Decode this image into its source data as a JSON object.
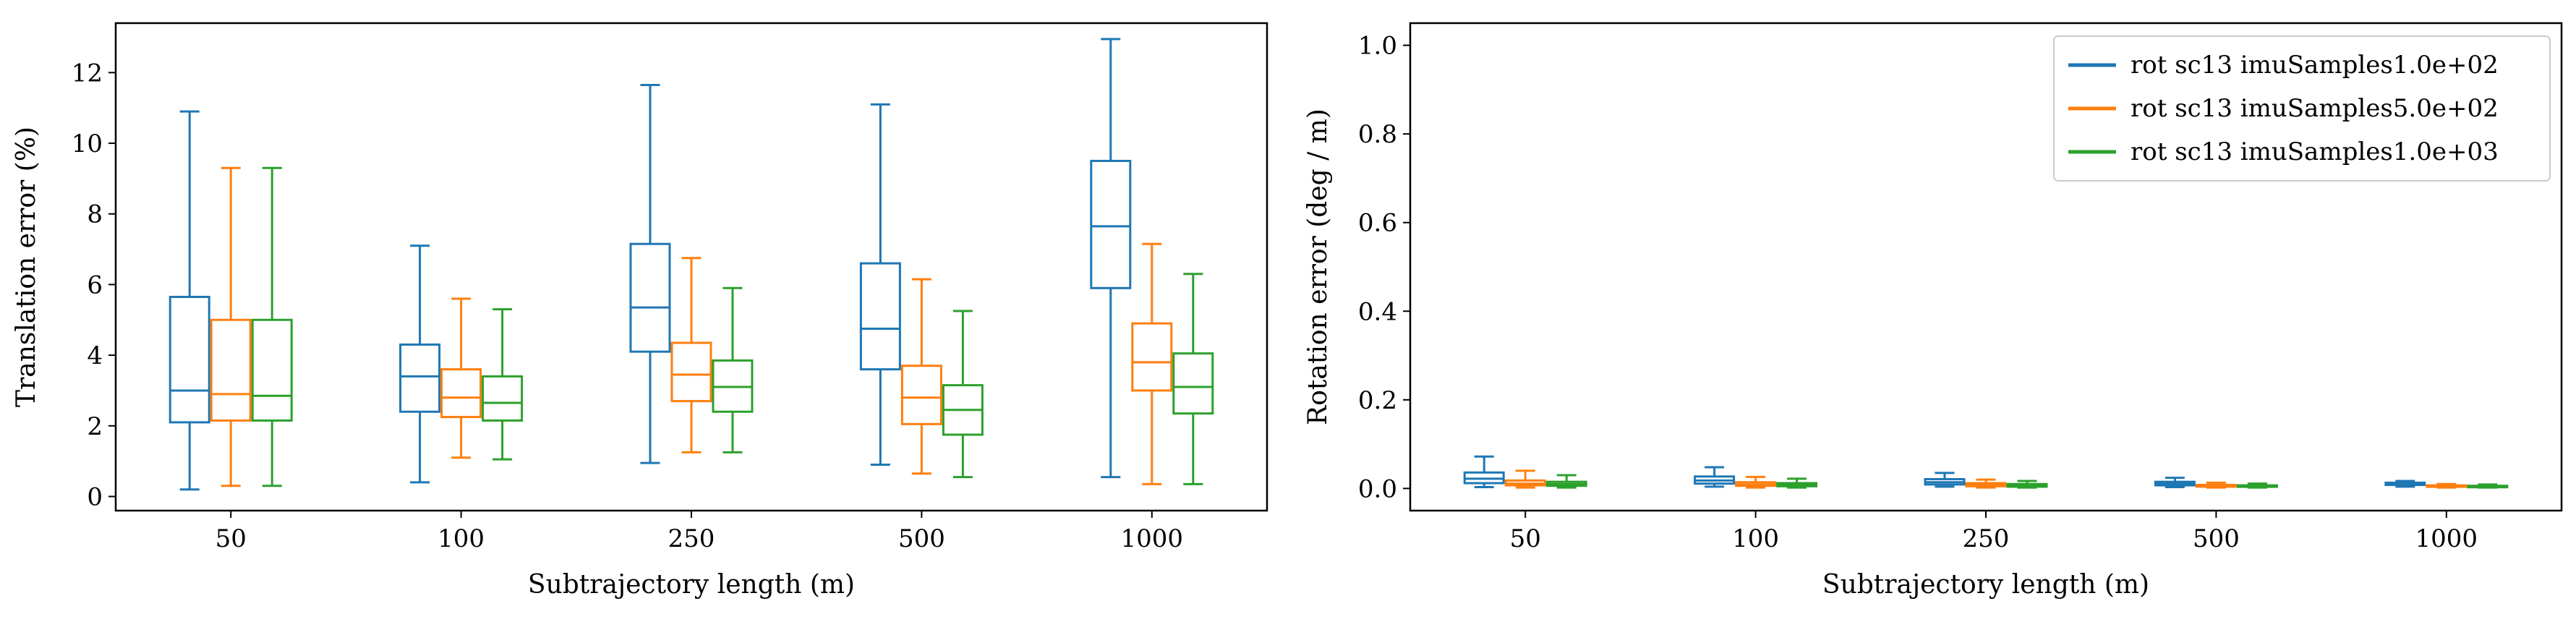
{
  "chart_data": [
    {
      "type": "boxplot",
      "categories": [
        "50",
        "100",
        "250",
        "500",
        "1000"
      ],
      "xlabel": "Subtrajectory length (m)",
      "ylabel": "Translation error (%)",
      "ylim": [
        -0.4,
        13.4
      ],
      "yticks": [
        0,
        2,
        4,
        6,
        8,
        10,
        12
      ],
      "grid": false,
      "legend": false,
      "series": [
        {
          "color": "#1f77b4",
          "boxes": [
            {
              "whislo": 0.2,
              "q1": 2.1,
              "med": 3.0,
              "q3": 5.65,
              "whishi": 10.9
            },
            {
              "whislo": 0.4,
              "q1": 2.4,
              "med": 3.4,
              "q3": 4.3,
              "whishi": 7.1
            },
            {
              "whislo": 0.95,
              "q1": 4.1,
              "med": 5.35,
              "q3": 7.15,
              "whishi": 11.65
            },
            {
              "whislo": 0.9,
              "q1": 3.6,
              "med": 4.75,
              "q3": 6.6,
              "whishi": 11.1
            },
            {
              "whislo": 0.55,
              "q1": 5.9,
              "med": 7.65,
              "q3": 9.5,
              "whishi": 12.95
            }
          ]
        },
        {
          "color": "#ff7f0e",
          "boxes": [
            {
              "whislo": 0.3,
              "q1": 2.15,
              "med": 2.9,
              "q3": 5.0,
              "whishi": 9.3
            },
            {
              "whislo": 1.1,
              "q1": 2.25,
              "med": 2.8,
              "q3": 3.6,
              "whishi": 5.6
            },
            {
              "whislo": 1.25,
              "q1": 2.7,
              "med": 3.45,
              "q3": 4.35,
              "whishi": 6.75
            },
            {
              "whislo": 0.65,
              "q1": 2.05,
              "med": 2.8,
              "q3": 3.7,
              "whishi": 6.15
            },
            {
              "whislo": 0.35,
              "q1": 3.0,
              "med": 3.8,
              "q3": 4.9,
              "whishi": 7.15
            }
          ]
        },
        {
          "color": "#2ca02c",
          "boxes": [
            {
              "whislo": 0.3,
              "q1": 2.15,
              "med": 2.85,
              "q3": 5.0,
              "whishi": 9.3
            },
            {
              "whislo": 1.05,
              "q1": 2.15,
              "med": 2.65,
              "q3": 3.4,
              "whishi": 5.3
            },
            {
              "whislo": 1.25,
              "q1": 2.4,
              "med": 3.1,
              "q3": 3.85,
              "whishi": 5.9
            },
            {
              "whislo": 0.55,
              "q1": 1.75,
              "med": 2.45,
              "q3": 3.15,
              "whishi": 5.25
            },
            {
              "whislo": 0.35,
              "q1": 2.35,
              "med": 3.1,
              "q3": 4.05,
              "whishi": 6.3
            }
          ]
        }
      ]
    },
    {
      "type": "boxplot",
      "categories": [
        "50",
        "100",
        "250",
        "500",
        "1000"
      ],
      "xlabel": "Subtrajectory length (m)",
      "ylabel": "Rotation error (deg / m)",
      "ylim": [
        -0.05,
        1.05
      ],
      "yticks": [
        0.0,
        0.2,
        0.4,
        0.6,
        0.8,
        1.0
      ],
      "ytick_labels": [
        "0.0",
        "0.2",
        "0.4",
        "0.6",
        "0.8",
        "1.0"
      ],
      "grid": false,
      "legend": "top-right",
      "series": [
        {
          "name": "rot sc13 imuSamples1.0e+02",
          "color": "#1f77b4",
          "boxes": [
            {
              "whislo": 0.003,
              "q1": 0.012,
              "med": 0.022,
              "q3": 0.036,
              "whishi": 0.072
            },
            {
              "whislo": 0.004,
              "q1": 0.011,
              "med": 0.018,
              "q3": 0.027,
              "whishi": 0.048
            },
            {
              "whislo": 0.004,
              "q1": 0.009,
              "med": 0.014,
              "q3": 0.021,
              "whishi": 0.035
            },
            {
              "whislo": 0.003,
              "q1": 0.007,
              "med": 0.011,
              "q3": 0.015,
              "whishi": 0.024
            },
            {
              "whislo": 0.004,
              "q1": 0.008,
              "med": 0.01,
              "q3": 0.013,
              "whishi": 0.017
            }
          ]
        },
        {
          "name": "rot sc13 imuSamples5.0e+02",
          "color": "#ff7f0e",
          "boxes": [
            {
              "whislo": 0.002,
              "q1": 0.007,
              "med": 0.011,
              "q3": 0.018,
              "whishi": 0.04
            },
            {
              "whislo": 0.002,
              "q1": 0.006,
              "med": 0.009,
              "q3": 0.014,
              "whishi": 0.026
            },
            {
              "whislo": 0.002,
              "q1": 0.005,
              "med": 0.008,
              "q3": 0.012,
              "whishi": 0.02
            },
            {
              "whislo": 0.002,
              "q1": 0.004,
              "med": 0.006,
              "q3": 0.008,
              "whishi": 0.013
            },
            {
              "whislo": 0.002,
              "q1": 0.004,
              "med": 0.005,
              "q3": 0.007,
              "whishi": 0.01
            }
          ]
        },
        {
          "name": "rot sc13 imuSamples1.0e+03",
          "color": "#2ca02c",
          "boxes": [
            {
              "whislo": 0.002,
              "q1": 0.006,
              "med": 0.01,
              "q3": 0.015,
              "whishi": 0.03
            },
            {
              "whislo": 0.002,
              "q1": 0.005,
              "med": 0.008,
              "q3": 0.012,
              "whishi": 0.022
            },
            {
              "whislo": 0.002,
              "q1": 0.004,
              "med": 0.007,
              "q3": 0.01,
              "whishi": 0.017
            },
            {
              "whislo": 0.002,
              "q1": 0.004,
              "med": 0.005,
              "q3": 0.007,
              "whishi": 0.011
            },
            {
              "whislo": 0.002,
              "q1": 0.003,
              "med": 0.005,
              "q3": 0.006,
              "whishi": 0.009
            }
          ]
        }
      ]
    }
  ]
}
